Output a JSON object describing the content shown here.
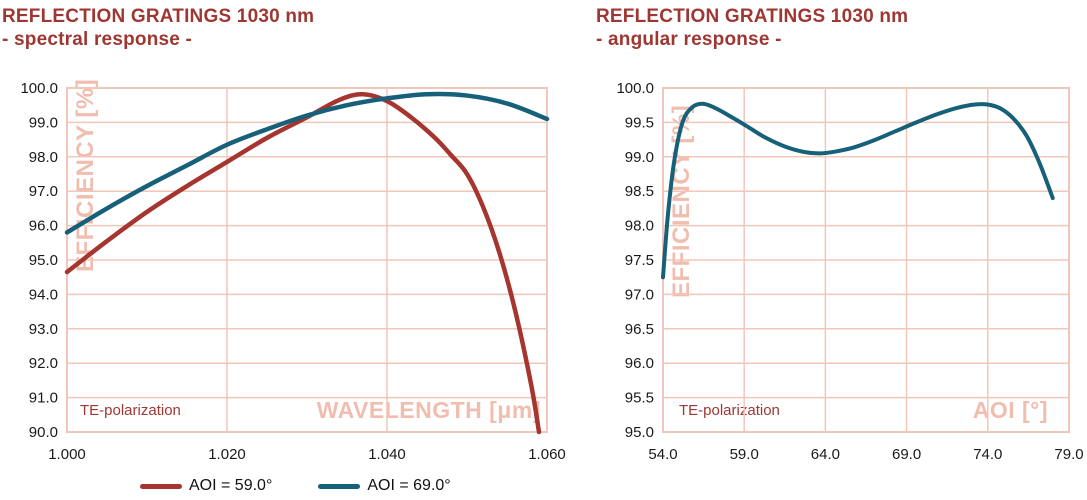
{
  "page": {
    "background": "#FFFFFF"
  },
  "colors": {
    "title_text": "#9E3732",
    "grid": "#F2C7BA",
    "axis_label_text": "#F0BDAE",
    "tick_text": "#1A1A1A",
    "series_red": "#A6352F",
    "series_teal": "#176079"
  },
  "chart_data": [
    {
      "type": "line",
      "title": "REFLECTION GRATINGS 1030 nm",
      "subtitle": "- spectral response -",
      "xlabel": "WAVELENGTH [μm]",
      "ylabel": "EFFICIENCY [%]",
      "annotation": "TE-polarization",
      "xlim": [
        1.0,
        1.06
      ],
      "ylim": [
        90.0,
        100.0
      ],
      "xticks": [
        1.0,
        1.02,
        1.04,
        1.06
      ],
      "xtick_labels": [
        "1.000",
        "1.020",
        "1.040",
        "1.060"
      ],
      "yticks": [
        90,
        91,
        92,
        93,
        94,
        95,
        96,
        97,
        98,
        99,
        100
      ],
      "ytick_labels": [
        "90.0",
        "91.0",
        "92.0",
        "93.0",
        "94.0",
        "95.0",
        "96.0",
        "97.0",
        "98.0",
        "99.0",
        "100.0"
      ],
      "grid": true,
      "legend_position": "bottom",
      "series": [
        {
          "name": "AOI = 59.0°",
          "color": "#A6352F",
          "x": [
            1.0,
            1.005,
            1.01,
            1.015,
            1.02,
            1.025,
            1.03,
            1.034,
            1.037,
            1.04,
            1.043,
            1.046,
            1.048,
            1.05,
            1.052,
            1.054,
            1.056,
            1.058,
            1.059
          ],
          "y": [
            94.65,
            95.55,
            96.4,
            97.15,
            97.85,
            98.55,
            99.15,
            99.65,
            99.82,
            99.62,
            99.15,
            98.55,
            98.05,
            97.5,
            96.55,
            95.25,
            93.55,
            91.4,
            90.0
          ]
        },
        {
          "name": "AOI = 69.0°",
          "color": "#176079",
          "x": [
            1.0,
            1.005,
            1.01,
            1.015,
            1.02,
            1.025,
            1.03,
            1.035,
            1.04,
            1.045,
            1.05,
            1.055,
            1.06
          ],
          "y": [
            95.8,
            96.5,
            97.15,
            97.75,
            98.35,
            98.8,
            99.2,
            99.5,
            99.7,
            99.82,
            99.78,
            99.55,
            99.1
          ]
        }
      ]
    },
    {
      "type": "line",
      "title": "REFLECTION GRATINGS 1030 nm",
      "subtitle": "- angular response -",
      "xlabel": "AOI [°]",
      "ylabel": "EFFICIENCY [%]",
      "annotation": "TE-polarization",
      "xlim": [
        54.0,
        79.0
      ],
      "ylim": [
        95.0,
        100.0
      ],
      "xticks": [
        54,
        59,
        64,
        69,
        74,
        79
      ],
      "xtick_labels": [
        "54.0",
        "59.0",
        "64.0",
        "69.0",
        "74.0",
        "79.0"
      ],
      "yticks": [
        95,
        95.5,
        96,
        96.5,
        97,
        97.5,
        98,
        98.5,
        99,
        99.5,
        100
      ],
      "ytick_labels": [
        "95.0",
        "95.5",
        "96.0",
        "96.5",
        "97.0",
        "97.5",
        "98.0",
        "98.5",
        "99.0",
        "99.5",
        "100.0"
      ],
      "grid": true,
      "legend_position": "none",
      "series": [
        {
          "color": "#176079",
          "x": [
            54.0,
            54.3,
            54.7,
            55.2,
            55.8,
            56.5,
            57.3,
            58.2,
            59.2,
            60.3,
            61.5,
            62.7,
            63.7,
            64.7,
            65.8,
            67.0,
            68.3,
            69.6,
            70.9,
            72.1,
            73.2,
            74.0,
            74.8,
            75.6,
            76.4,
            77.2,
            78.0
          ],
          "y": [
            97.25,
            98.15,
            98.95,
            99.5,
            99.72,
            99.77,
            99.7,
            99.58,
            99.44,
            99.28,
            99.15,
            99.07,
            99.05,
            99.08,
            99.14,
            99.24,
            99.37,
            99.5,
            99.62,
            99.71,
            99.76,
            99.76,
            99.7,
            99.55,
            99.3,
            98.9,
            98.4
          ]
        }
      ]
    }
  ]
}
